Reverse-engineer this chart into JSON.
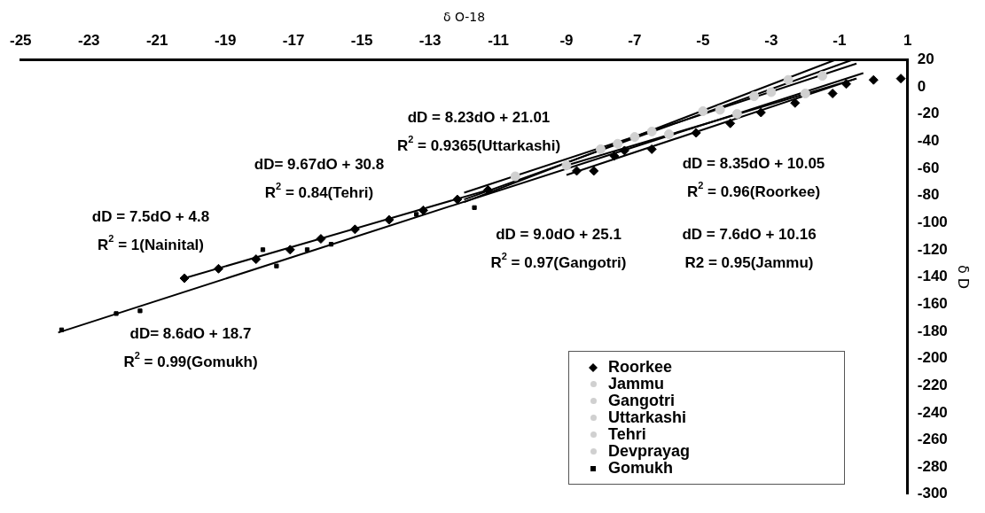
{
  "chart_data": {
    "type": "scatter",
    "xlabel": "δ O-18",
    "ylabel": "δ D",
    "xlim": [
      -25,
      1
    ],
    "xticks": [
      -25,
      -23,
      -21,
      -19,
      -17,
      -15,
      -13,
      -11,
      -9,
      -7,
      -5,
      -3,
      -1,
      1
    ],
    "ylim": [
      -300,
      20
    ],
    "yticks": [
      20,
      0,
      -20,
      -40,
      -60,
      -80,
      -100,
      -120,
      -140,
      -160,
      -180,
      -200,
      -220,
      -240,
      -260,
      -280,
      -300
    ],
    "grid": false,
    "legend": "bottom right",
    "series": [
      {
        "name": "Roorkee",
        "color": "#000000",
        "marker": "diamond",
        "x": [
          -20.2,
          -19.2,
          -18.1,
          -17.1,
          -16.2,
          -15.2,
          -14.2,
          -13.2,
          -12.2,
          -11.3,
          -8.7,
          -8.2,
          -7.6,
          -7.3,
          -6.5,
          -5.2,
          -4.2,
          -3.3,
          -2.3,
          -1.2,
          -0.8,
          0.0,
          0.8
        ],
        "values": [
          -141,
          -134,
          -127,
          -120,
          -112,
          -105,
          -98,
          -91,
          -83,
          -76,
          -62,
          -62,
          -51,
          -47,
          -46,
          -34,
          -27,
          -19,
          -12,
          -5,
          2,
          5,
          6
        ]
      },
      {
        "name": "Jammu",
        "color": "#d0d0d0",
        "marker": "circle",
        "x": [
          -6,
          -4,
          -2
        ],
        "values": [
          -35,
          -20,
          -5
        ]
      },
      {
        "name": "Gangotri",
        "color": "#d0d0d0",
        "marker": "circle",
        "x": [
          -9,
          -6.5,
          -3.5
        ],
        "values": [
          -58,
          -33,
          -7
        ]
      },
      {
        "name": "Uttarkashi",
        "color": "#d0d0d0",
        "marker": "circle",
        "x": [
          -10.5,
          -7,
          -3
        ],
        "values": [
          -66,
          -37,
          -4
        ]
      },
      {
        "name": "Tehri",
        "color": "#d0d0d0",
        "marker": "circle",
        "x": [
          -8,
          -5,
          -2.5
        ],
        "values": [
          -46,
          -18,
          5
        ]
      },
      {
        "name": "Devprayag",
        "color": "#d0d0d0",
        "marker": "circle",
        "x": [
          -7.5,
          -4.5,
          -1.5
        ],
        "values": [
          -42,
          -17,
          8
        ]
      },
      {
        "name": "Gomukh",
        "color": "#000000",
        "marker": "square",
        "x": [
          -23.8,
          -22.2,
          -21.5,
          -17.9,
          -17.5,
          -16.6,
          -15.9,
          -13.4,
          -11.7
        ],
        "values": [
          -179,
          -167,
          -165,
          -120,
          -132,
          -120,
          -116,
          -94,
          -89
        ]
      },
      {
        "type": "line",
        "color": "#000000",
        "x": [
          -23.9,
          -0.3
        ],
        "values": [
          -181,
          10
        ]
      },
      {
        "type": "line",
        "color": "#000000",
        "x": [
          -20.2,
          -11.3
        ],
        "values": [
          -141,
          -76
        ]
      },
      {
        "type": "line",
        "color": "#000000",
        "x": [
          -12,
          -0.5
        ],
        "values": [
          -78,
          17
        ]
      },
      {
        "type": "line",
        "color": "#000000",
        "x": [
          -12,
          -1.1
        ],
        "values": [
          -85,
          20
        ]
      },
      {
        "type": "line",
        "color": "#000000",
        "x": [
          -12,
          -0.6
        ],
        "values": [
          -83,
          20
        ]
      },
      {
        "type": "line",
        "color": "#000000",
        "x": [
          -9,
          -0.5
        ],
        "values": [
          -58,
          6
        ]
      },
      {
        "type": "line",
        "color": "#000000",
        "x": [
          -9,
          -0.5
        ],
        "values": [
          -65,
          6
        ]
      }
    ],
    "annotations": [
      "dD = 8.23dO + 21.01\nR$^{2}$ = 0.9365(Uttarkashi)",
      "dD= 9.67dO + 30.8\nR$^{2}$ = 0.84(Tehri)",
      "dD = 7.5dO + 4.8\nR$^{2}$ = 1(Nainital)",
      "dD = 8.35dO + 10.05\nR$^{2}$ = 0.96(Roorkee)",
      "dD = 9.0dO + 25.1\nR$^{2}$ = 0.97(Gangotri)",
      "dD = 7.6dO + 10.16\nR2 = 0.95(Jammu)",
      "dD= 8.6dO + 18.7\nR$^{2}$ = 0.99(Gomukh)"
    ]
  }
}
